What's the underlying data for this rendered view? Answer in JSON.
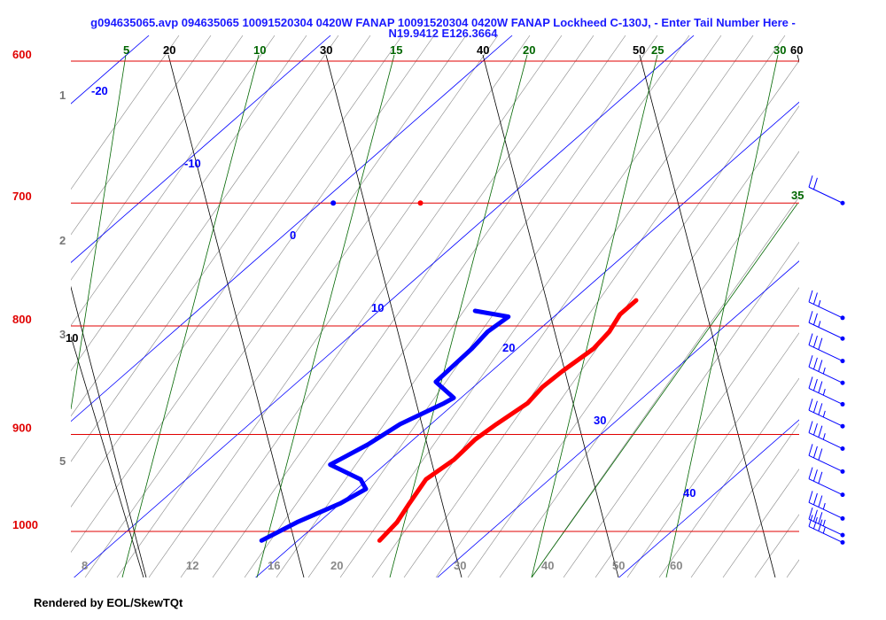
{
  "title_lines": [
    "g094635065.avp 094635065 10091520304 0420W FANAP 10091520304 0420W FANAP Lockheed C-130J, - Enter Tail Number Here -",
    "N19.9412 E126.3664"
  ],
  "footer": "Rendered by EOL/SkewTQt",
  "colors": {
    "isobar": "#e00000",
    "isotherm_label": "#000000",
    "isotherm_line": "#000000",
    "dry_adiabat": "#000000",
    "moist_adiabat": "#888888",
    "mixing_ratio": "#006600",
    "temperature_trace": "#ff0000",
    "dewpoint_trace": "#0000ff",
    "barb": "#0000ff",
    "background": "#ffffff"
  },
  "chart_data": {
    "type": "skew-t",
    "pressure_labels": [
      "600",
      "700",
      "800",
      "900",
      "1000"
    ],
    "pressure_levels": [
      600,
      700,
      800,
      900,
      1000
    ],
    "temperature_labels": [
      "-20",
      "-10",
      "0",
      "10",
      "20",
      "30",
      "40"
    ],
    "top_isotherm_labels": [
      "20",
      "30",
      "40",
      "50",
      "60"
    ],
    "mixing_ratio_labels": [
      "5",
      "10",
      "15",
      "20",
      "25",
      "30",
      "35"
    ],
    "left_altitude_labels": [
      "1",
      "2",
      "3",
      "5"
    ],
    "left_potential_label": "10",
    "bottom_theta_labels": [
      "8",
      "12",
      "16",
      "20",
      "30",
      "40",
      "50",
      "60"
    ],
    "temperature_trace": [
      {
        "p": 1010,
        "t": 24.5
      },
      {
        "p": 990,
        "t": 24.3
      },
      {
        "p": 970,
        "t": 23.8
      },
      {
        "p": 945,
        "t": 23.2
      },
      {
        "p": 925,
        "t": 23.5
      },
      {
        "p": 905,
        "t": 23.4
      },
      {
        "p": 890,
        "t": 23.6
      },
      {
        "p": 870,
        "t": 24.0
      },
      {
        "p": 855,
        "t": 23.8
      },
      {
        "p": 840,
        "t": 23.9
      },
      {
        "p": 820,
        "t": 24.2
      },
      {
        "p": 805,
        "t": 24.0
      },
      {
        "p": 790,
        "t": 23.5
      },
      {
        "p": 778,
        "t": 23.5
      }
    ],
    "dewpoint_trace": [
      {
        "p": 1010,
        "t": 18.0
      },
      {
        "p": 990,
        "t": 18.8
      },
      {
        "p": 970,
        "t": 20.0
      },
      {
        "p": 955,
        "t": 20.5
      },
      {
        "p": 945,
        "t": 19.6
      },
      {
        "p": 930,
        "t": 17.0
      },
      {
        "p": 910,
        "t": 17.8
      },
      {
        "p": 890,
        "t": 18.3
      },
      {
        "p": 870,
        "t": 19.4
      },
      {
        "p": 865,
        "t": 19.6
      },
      {
        "p": 850,
        "t": 17.6
      },
      {
        "p": 820,
        "t": 17.5
      },
      {
        "p": 805,
        "t": 17.3
      },
      {
        "p": 792,
        "t": 17.5
      },
      {
        "p": 787,
        "t": 15.3
      }
    ],
    "surface_points": [
      {
        "p": 700,
        "t": 0.7,
        "kind": "dewpoint"
      },
      {
        "p": 700,
        "t": 5.5,
        "kind": "temperature"
      }
    ],
    "wind_barbs": [
      {
        "p": 700,
        "knots": 20
      },
      {
        "p": 793,
        "knots": 25
      },
      {
        "p": 811,
        "knots": 25
      },
      {
        "p": 831,
        "knots": 30
      },
      {
        "p": 851,
        "knots": 35
      },
      {
        "p": 871,
        "knots": 35
      },
      {
        "p": 892,
        "knots": 35
      },
      {
        "p": 914,
        "knots": 35
      },
      {
        "p": 937,
        "knots": 30
      },
      {
        "p": 961,
        "knots": 30
      },
      {
        "p": 986,
        "knots": 35
      },
      {
        "p": 1004,
        "knots": 35
      },
      {
        "p": 1012,
        "knots": 35
      }
    ]
  }
}
